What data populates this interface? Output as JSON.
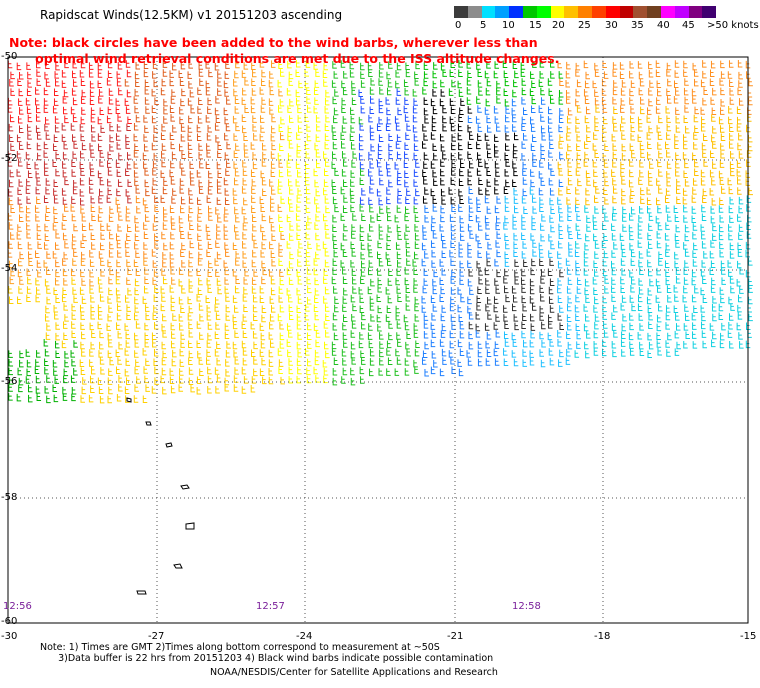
{
  "title": "Rapidscat Winds(12.5KM) v1 20151203 ascending",
  "note_line1": "Note: black circles have been added to the wind barbs, wherever less than",
  "note_line2": "      optimal wind retrieval conditions are met due to the ISS altitude changes.",
  "legend": {
    "labels": [
      "0",
      "5",
      "10",
      "15",
      "20",
      "25",
      "30",
      "35",
      "40",
      "45",
      ">50 knots"
    ],
    "colors": [
      "#3c3c3c",
      "#8c8c8c",
      "#00e0ff",
      "#00a0ff",
      "#0030ff",
      "#00c800",
      "#00ff00",
      "#ffff00",
      "#ffc000",
      "#ff8000",
      "#ff4000",
      "#ff0000",
      "#c00000",
      "#a05030",
      "#704020",
      "#ff00ff",
      "#c000ff",
      "#800080",
      "#400070"
    ]
  },
  "axes": {
    "x_ticks": [
      "-30",
      "-27",
      "-24",
      "-21",
      "-18",
      "-15"
    ],
    "y_ticks": [
      "-50",
      "-52",
      "-54",
      "-56",
      "-58",
      "-60"
    ]
  },
  "times": [
    "12:56",
    "12:57",
    "12:58"
  ],
  "footer": {
    "line1": "Note: 1) Times are GMT 2)Times along bottom correspond to measurement at ~50S",
    "line2": "      3)Data buffer is 22 hrs from 20151203 4) Black wind barbs indicate possible contamination",
    "credit": "NOAA/NESDIS/Center for Satellite Applications and Research"
  }
}
